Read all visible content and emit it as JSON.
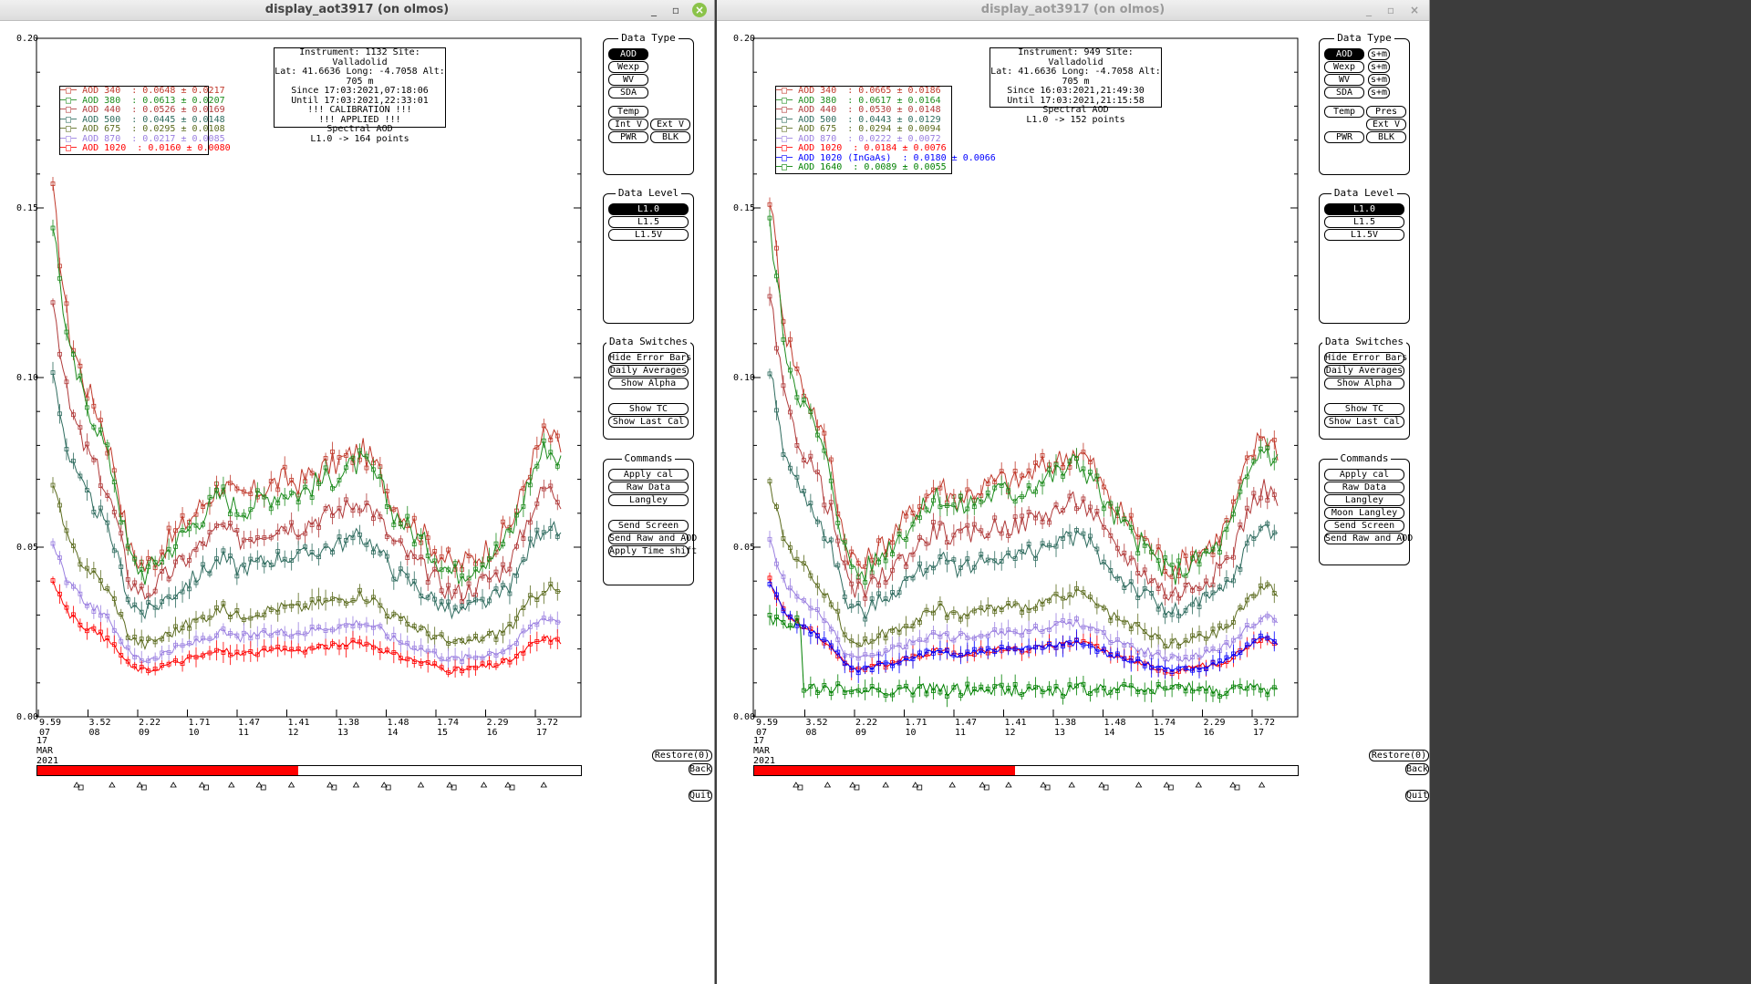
{
  "windows": [
    {
      "title": "display_aot3917 (on olmos)",
      "active": true,
      "info": [
        "Instrument: 1132 Site: Valladolid",
        "Lat: 41.6636 Long: -4.7058 Alt: 705 m",
        "Since 17:03:2021,07:18:06",
        "Until 17:03:2021,22:33:01",
        "!!! CALIBRATION !!!",
        "!!!   APPLIED   !!!",
        "Spectral AOD",
        "L1.0 -> 164 points"
      ],
      "legend": [
        {
          "label": "AOD 340  : 0.0648 ± 0.0217",
          "color": "#c0392b"
        },
        {
          "label": "AOD 380  : 0.0613 ± 0.0207",
          "color": "#1e8c1e"
        },
        {
          "label": "AOD 440  : 0.0526 ± 0.0169",
          "color": "#b03a3a"
        },
        {
          "label": "AOD 500  : 0.0445 ± 0.0148",
          "color": "#2e6b5e"
        },
        {
          "label": "AOD 675  : 0.0295 ± 0.0108",
          "color": "#5b6b1e"
        },
        {
          "label": "AOD 870  : 0.0217 ± 0.0085",
          "color": "#9a7fe0"
        },
        {
          "label": "AOD 1020  : 0.0160 ± 0.0080",
          "color": "#ff0000"
        }
      ],
      "y_ticks": [
        "0.20",
        "0.15",
        "0.10",
        "0.05",
        "0.00"
      ],
      "x_ticks": [
        {
          "am": "9.59",
          "hour": "07"
        },
        {
          "am": "3.52",
          "hour": "08"
        },
        {
          "am": "2.22",
          "hour": "09"
        },
        {
          "am": "1.71",
          "hour": "10"
        },
        {
          "am": "1.47",
          "hour": "11"
        },
        {
          "am": "1.41",
          "hour": "12"
        },
        {
          "am": "1.38",
          "hour": "13"
        },
        {
          "am": "1.48",
          "hour": "14"
        },
        {
          "am": "1.74",
          "hour": "15"
        },
        {
          "am": "2.29",
          "hour": "16"
        },
        {
          "am": "3.72",
          "hour": "17"
        }
      ],
      "date_label": [
        "17",
        "MAR",
        "2021"
      ],
      "progress_fraction": 0.48,
      "data_type": {
        "title": "Data Type",
        "buttons": [
          "AOD",
          "Wexp",
          "WV",
          "SDA"
        ],
        "extra": [
          "Temp",
          "Int V",
          "Ext V",
          "PWR",
          "BLK"
        ]
      },
      "data_level": {
        "title": "Data Level",
        "buttons": [
          "L1.0",
          "L1.5",
          "L1.5V"
        ]
      },
      "data_switches": {
        "title": "Data Switches",
        "buttons": [
          "Hide Error Bars",
          "Daily Averages",
          "Show Alpha",
          "Show TC",
          "Show Last Cal"
        ]
      },
      "commands": {
        "title": "Commands",
        "buttons": [
          "Apply cal",
          "Raw Data",
          "Langley",
          "Send Screen",
          "Send Raw and AOD",
          "Apply Time shift"
        ]
      },
      "restore_label": "Restore(0)",
      "back_label": "Back",
      "quit_label": "Quit"
    },
    {
      "title": "display_aot3917 (on olmos)",
      "active": false,
      "info": [
        "Instrument: 949 Site: Valladolid",
        "Lat: 41.6636 Long: -4.7058 Alt: 705 m",
        "Since 16:03:2021,21:49:30",
        "Until 17:03:2021,21:15:58",
        "Spectral AOD",
        "L1.0 -> 152 points"
      ],
      "legend": [
        {
          "label": "AOD 340  : 0.0665 ± 0.0186",
          "color": "#c0392b"
        },
        {
          "label": "AOD 380  : 0.0617 ± 0.0164",
          "color": "#1e8c1e"
        },
        {
          "label": "AOD 440  : 0.0530 ± 0.0148",
          "color": "#b03a3a"
        },
        {
          "label": "AOD 500  : 0.0443 ± 0.0129",
          "color": "#2e6b5e"
        },
        {
          "label": "AOD 675  : 0.0294 ± 0.0094",
          "color": "#5b6b1e"
        },
        {
          "label": "AOD 870  : 0.0222 ± 0.0072",
          "color": "#9a7fe0"
        },
        {
          "label": "AOD 1020  : 0.0184 ± 0.0076",
          "color": "#ff0000"
        },
        {
          "label": "AOD 1020 (InGaAs)  : 0.0180 ± 0.0066",
          "color": "#0000ff"
        },
        {
          "label": "AOD 1640  : 0.0089 ± 0.0055",
          "color": "#008000"
        }
      ],
      "y_ticks": [
        "0.20",
        "0.15",
        "0.10",
        "0.05",
        "0.00"
      ],
      "x_ticks": [
        {
          "am": "9.59",
          "hour": "07"
        },
        {
          "am": "3.52",
          "hour": "08"
        },
        {
          "am": "2.22",
          "hour": "09"
        },
        {
          "am": "1.71",
          "hour": "10"
        },
        {
          "am": "1.47",
          "hour": "11"
        },
        {
          "am": "1.41",
          "hour": "12"
        },
        {
          "am": "1.38",
          "hour": "13"
        },
        {
          "am": "1.48",
          "hour": "14"
        },
        {
          "am": "1.74",
          "hour": "15"
        },
        {
          "am": "2.29",
          "hour": "16"
        },
        {
          "am": "3.72",
          "hour": "17"
        }
      ],
      "date_label": [
        "17",
        "MAR",
        "2021"
      ],
      "progress_fraction": 0.48,
      "data_type": {
        "title": "Data Type",
        "buttons": [
          "AOD",
          "Wexp",
          "WV",
          "SDA"
        ],
        "side": [
          "s+m",
          "s+m",
          "s+m",
          "s+m"
        ],
        "extra": [
          "Temp",
          "Pres",
          "Ext V",
          "PWR",
          "BLK"
        ]
      },
      "data_level": {
        "title": "Data Level",
        "buttons": [
          "L1.0",
          "L1.5",
          "L1.5V"
        ]
      },
      "data_switches": {
        "title": "Data Switches",
        "buttons": [
          "Hide Error Bars",
          "Daily Averages",
          "Show Alpha",
          "Show TC",
          "Show Last Cal"
        ]
      },
      "commands": {
        "title": "Commands",
        "buttons": [
          "Apply cal",
          "Raw Data",
          "Langley",
          "Moon Langley",
          "Send Screen",
          "Send Raw and AOD"
        ]
      },
      "restore_label": "Restore(0)",
      "back_label": "Back",
      "quit_label": "Quit"
    }
  ]
}
